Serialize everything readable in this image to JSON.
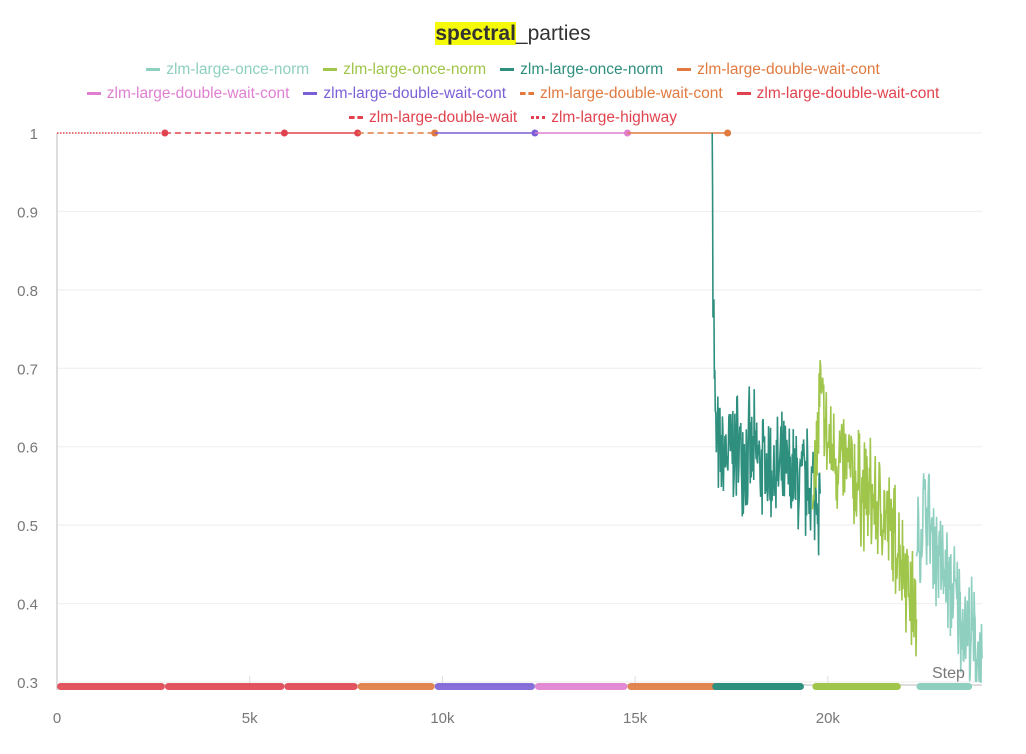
{
  "chart_data": {
    "type": "line",
    "title_highlight": "spectral",
    "title_rest": "_parties",
    "xlabel": "Step",
    "ylabel": "",
    "xlim": [
      0,
      24000
    ],
    "ylim": [
      0.3,
      1.0
    ],
    "x_ticks": [
      {
        "v": 0,
        "label": "0"
      },
      {
        "v": 5000,
        "label": "5k"
      },
      {
        "v": 10000,
        "label": "10k"
      },
      {
        "v": 15000,
        "label": "15k"
      },
      {
        "v": 20000,
        "label": "20k"
      }
    ],
    "y_ticks": [
      {
        "v": 0.3,
        "label": "0.3"
      },
      {
        "v": 0.4,
        "label": "0.4"
      },
      {
        "v": 0.5,
        "label": "0.5"
      },
      {
        "v": 0.6,
        "label": "0.6"
      },
      {
        "v": 0.7,
        "label": "0.7"
      },
      {
        "v": 0.8,
        "label": "0.8"
      },
      {
        "v": 0.9,
        "label": "0.9"
      },
      {
        "v": 1.0,
        "label": "1"
      }
    ],
    "grid": true,
    "legend_placement": "top",
    "series": [
      {
        "name": "zlm-large-once-norm",
        "color": "#8ecfbf",
        "dash": "solid",
        "noise": 0.06,
        "x": [
          22300,
          22500,
          23000,
          23500,
          24000
        ],
        "y": [
          0.46,
          0.52,
          0.44,
          0.38,
          0.33
        ]
      },
      {
        "name": "zlm-large-once-norm",
        "color": "#9fc54a",
        "dash": "solid",
        "noise": 0.06,
        "x": [
          19600,
          19800,
          20000,
          20500,
          21000,
          21500,
          22000,
          22300
        ],
        "y": [
          0.52,
          0.66,
          0.6,
          0.57,
          0.54,
          0.51,
          0.45,
          0.38
        ]
      },
      {
        "name": "zlm-large-once-norm",
        "color": "#2e8f7e",
        "dash": "solid",
        "noise": 0.06,
        "x": [
          17000,
          17020,
          17080,
          17200,
          17600,
          18000,
          18500,
          19000,
          19500,
          19800
        ],
        "y": [
          1.0,
          0.85,
          0.62,
          0.58,
          0.6,
          0.59,
          0.57,
          0.56,
          0.55,
          0.54
        ]
      },
      {
        "name": "zlm-large-double-wait-cont",
        "color": "#e07a3f",
        "dash": "solid",
        "noise": 0,
        "x": [
          14800,
          17400
        ],
        "y": [
          1,
          1
        ]
      },
      {
        "name": "zlm-large-double-wait-cont",
        "color": "#e07fd0",
        "dash": "solid",
        "noise": 0,
        "x": [
          12400,
          14800
        ],
        "y": [
          1,
          1
        ]
      },
      {
        "name": "zlm-large-double-wait-cont",
        "color": "#7b5fd6",
        "dash": "solid",
        "noise": 0,
        "x": [
          9800,
          12400
        ],
        "y": [
          1,
          1
        ]
      },
      {
        "name": "zlm-large-double-wait-cont",
        "color": "#e07a3f",
        "dash": "dashed",
        "noise": 0,
        "x": [
          7800,
          9800
        ],
        "y": [
          1,
          1
        ]
      },
      {
        "name": "zlm-large-double-wait-cont",
        "color": "#e0434f",
        "dash": "solid",
        "noise": 0,
        "x": [
          5900,
          7800
        ],
        "y": [
          1,
          1
        ]
      },
      {
        "name": "zlm-large-double-wait",
        "color": "#e0434f",
        "dash": "dashed",
        "noise": 0,
        "x": [
          2800,
          5900
        ],
        "y": [
          1,
          1
        ]
      },
      {
        "name": "zlm-large-highway",
        "color": "#e0434f",
        "dash": "dotted",
        "noise": 0,
        "x": [
          0,
          2800
        ],
        "y": [
          1,
          1
        ]
      }
    ]
  }
}
